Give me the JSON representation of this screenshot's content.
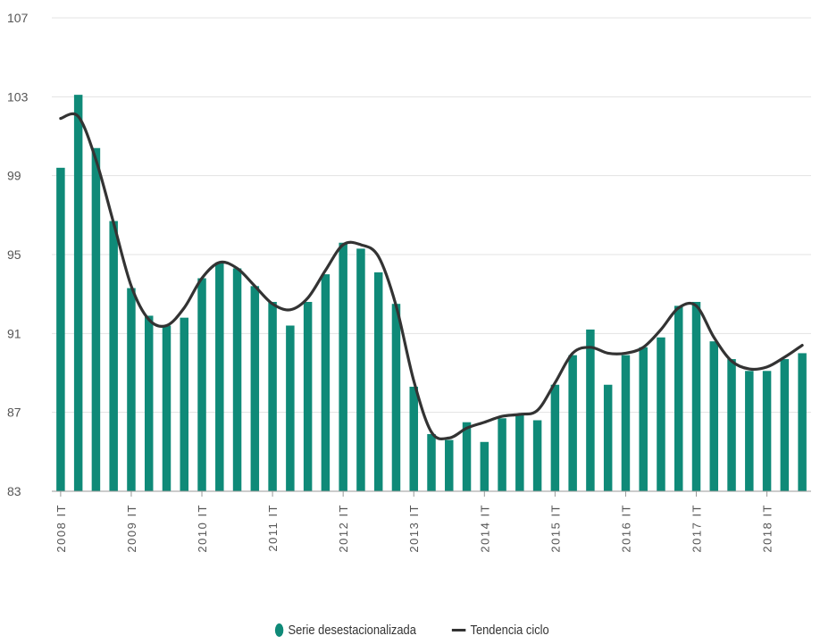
{
  "chart_data": {
    "type": "bar",
    "title": "",
    "xlabel": "",
    "ylabel": "",
    "ylim": [
      83,
      107
    ],
    "yticks": [
      83,
      87,
      91,
      95,
      99,
      103,
      107
    ],
    "grid": "horizontal",
    "legend_position": "bottom-center",
    "x_tick_labels": [
      {
        "index": 0,
        "label": "2008 IT"
      },
      {
        "index": 4,
        "label": "2009 IT"
      },
      {
        "index": 8,
        "label": "2010 IT"
      },
      {
        "index": 12,
        "label": "2011 IT"
      },
      {
        "index": 16,
        "label": "2012 IT"
      },
      {
        "index": 20,
        "label": "2013 IT"
      },
      {
        "index": 24,
        "label": "2014 IT"
      },
      {
        "index": 28,
        "label": "2015 IT"
      },
      {
        "index": 32,
        "label": "2016 IT"
      },
      {
        "index": 36,
        "label": "2017 IT"
      },
      {
        "index": 40,
        "label": "2018 IT"
      }
    ],
    "series": [
      {
        "name": "Serie desestacionalizada",
        "type": "bar",
        "color": "#0f8a78",
        "values": [
          99.4,
          103.1,
          100.4,
          96.7,
          93.3,
          91.9,
          91.4,
          91.8,
          93.8,
          94.6,
          94.3,
          93.4,
          92.6,
          91.4,
          92.6,
          94.0,
          95.6,
          95.3,
          94.1,
          92.5,
          88.3,
          85.9,
          85.6,
          86.5,
          85.5,
          86.7,
          86.9,
          86.6,
          88.4,
          89.9,
          91.2,
          88.4,
          89.9,
          90.3,
          90.8,
          92.4,
          92.6,
          90.6,
          89.7,
          89.1,
          89.1,
          89.7,
          90.0
        ],
        "symbol": "ellipse"
      },
      {
        "name": "Tendencia ciclo",
        "type": "line",
        "color": "#333333",
        "values": [
          101.9,
          102.0,
          99.8,
          96.6,
          93.4,
          91.7,
          91.4,
          92.3,
          93.8,
          94.6,
          94.3,
          93.4,
          92.5,
          92.2,
          92.8,
          94.2,
          95.5,
          95.5,
          94.9,
          92.4,
          88.6,
          86.0,
          85.7,
          86.2,
          86.5,
          86.8,
          86.9,
          87.1,
          88.5,
          90.0,
          90.3,
          90.0,
          90.0,
          90.3,
          91.2,
          92.3,
          92.4,
          90.8,
          89.6,
          89.2,
          89.3,
          89.8,
          90.4
        ],
        "symbol": "line"
      }
    ]
  }
}
